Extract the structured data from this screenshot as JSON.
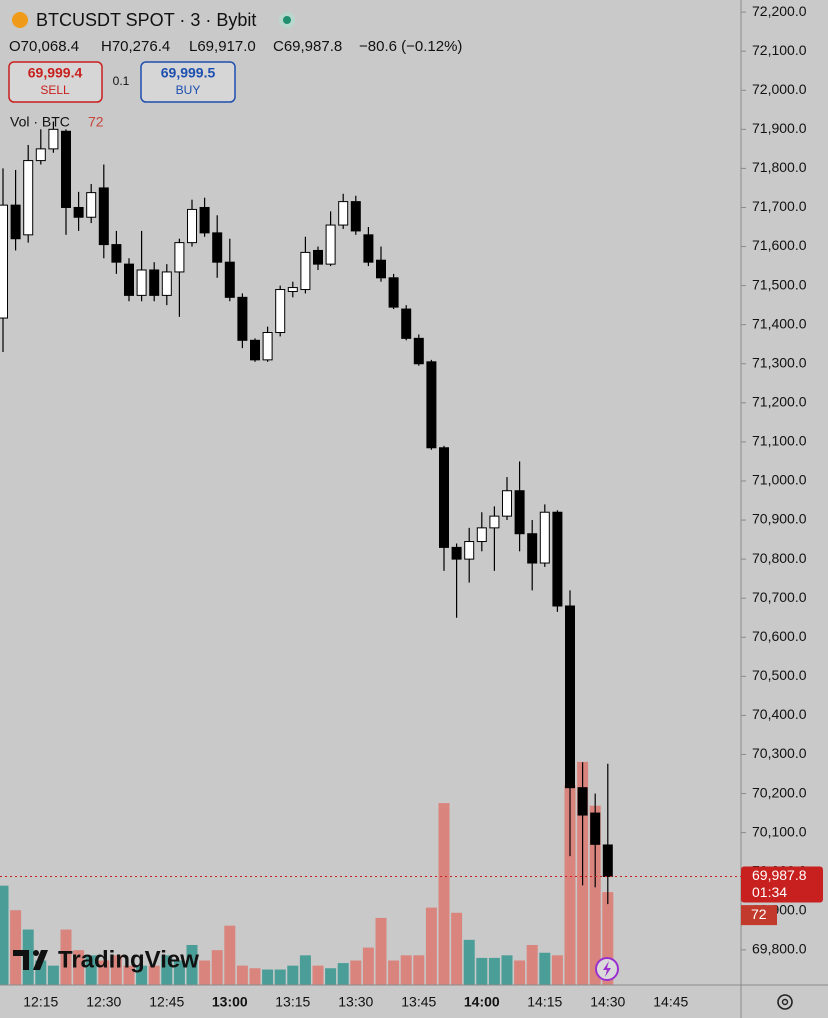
{
  "chart_data": {
    "type": "candlestick",
    "title": "BTCUSDT SPOT · 3 · Bybit",
    "ohlc_text": [
      "O70,068.4",
      "H70,276.4",
      "L69,917.0",
      "C69,987.8",
      "−80.6 (−0.12%)"
    ],
    "sell_price": "69,999.4",
    "sell_label": "SELL",
    "quantity": "0.1",
    "buy_price": "69,999.5",
    "buy_label": "BUY",
    "volume_legend": "Vol · BTC",
    "countdown": "01:34",
    "watermark": "TradingView",
    "last_price": {
      "value": 69987.8,
      "label": "69,987.8"
    },
    "categories": [
      null,
      null,
      null,
      "12:15",
      null,
      null,
      null,
      null,
      "12:30",
      null,
      null,
      null,
      null,
      "12:45",
      null,
      null,
      null,
      null,
      "13:00",
      null,
      null,
      null,
      null,
      "13:15",
      null,
      null,
      null,
      null,
      "13:30",
      null,
      null,
      null,
      null,
      "13:45",
      null,
      null,
      null,
      null,
      "14:00",
      null,
      null,
      null,
      null,
      "14:15",
      null,
      null,
      null,
      null,
      "14:30",
      null,
      null,
      null,
      null,
      "14:45",
      null,
      null,
      null,
      null,
      null
    ],
    "open": [
      71417,
      71706,
      71630,
      71820,
      71850,
      71895,
      71700,
      71675,
      71750,
      71605,
      71555,
      71475,
      71540,
      71475,
      71535,
      71610,
      71700,
      71635,
      71560,
      71470,
      71360,
      71310,
      71380,
      71485,
      71490,
      71590,
      71555,
      71655,
      71715,
      71630,
      71565,
      71520,
      71440,
      71365,
      71305,
      71085,
      70830,
      70800,
      70845,
      70880,
      70910,
      70975,
      70865,
      70790,
      70920,
      70680,
      70215,
      70150,
      70068.4,
      null,
      null,
      null,
      null,
      null,
      null,
      null,
      null,
      null,
      null
    ],
    "high": [
      71800,
      71796,
      71860,
      71900,
      71920,
      71900,
      71740,
      71760,
      71810,
      71640,
      71570,
      71640,
      71560,
      71555,
      71620,
      71720,
      71725,
      71680,
      71620,
      71480,
      71365,
      71395,
      71500,
      71510,
      71625,
      71600,
      71690,
      71735,
      71730,
      71650,
      71600,
      71530,
      71450,
      71375,
      71310,
      71090,
      70840,
      70880,
      70920,
      70935,
      71010,
      71050,
      70900,
      70940,
      70925,
      70720,
      70280,
      70200,
      70276.4,
      null,
      null,
      null,
      null,
      null,
      null,
      null,
      null,
      null,
      null
    ],
    "low": [
      71330,
      71590,
      71610,
      71810,
      71840,
      71630,
      71640,
      71660,
      71570,
      71530,
      71460,
      71460,
      71460,
      71450,
      71420,
      71600,
      71625,
      71520,
      71460,
      71340,
      71305,
      71305,
      71370,
      71470,
      71480,
      71540,
      71550,
      71645,
      71630,
      71550,
      71510,
      71440,
      71360,
      71295,
      71080,
      70770,
      70650,
      70740,
      70820,
      70770,
      70900,
      70820,
      70720,
      70780,
      70665,
      70040,
      69965,
      69960,
      69917,
      null,
      null,
      null,
      null,
      null,
      null,
      null,
      null,
      null,
      null
    ],
    "close": [
      71706,
      71620,
      71820,
      71850,
      71900,
      71700,
      71675,
      71738,
      71605,
      71560,
      71475,
      71540,
      71475,
      71535,
      71610,
      71695,
      71635,
      71560,
      71470,
      71360,
      71310,
      71380,
      71490,
      71495,
      71585,
      71555,
      71655,
      71715,
      71640,
      71560,
      71520,
      71445,
      71365,
      71300,
      71085,
      70830,
      70800,
      70845,
      70880,
      70910,
      70975,
      70865,
      70790,
      70920,
      70680,
      70215,
      70145,
      70070,
      69987.8,
      null,
      null,
      null,
      null,
      null,
      null,
      null,
      null,
      null,
      null
    ],
    "volume": [
      77,
      58,
      43,
      19,
      15,
      43,
      27,
      23,
      19,
      23,
      15,
      15,
      15,
      23,
      19,
      31,
      19,
      27,
      46,
      15,
      13,
      12,
      12,
      15,
      23,
      15,
      13,
      17,
      19,
      29,
      52,
      19,
      23,
      23,
      60,
      141,
      56,
      35,
      21,
      21,
      23,
      19,
      31,
      25,
      23,
      155,
      173,
      139,
      72,
      null,
      null,
      null,
      null,
      null,
      null,
      null,
      null,
      null,
      null
    ],
    "up_color": "#ffffff",
    "down_color": "#000000",
    "volume_up_color": "#4a9e97",
    "volume_down_color": "#d9857e",
    "last_price_color": "#c8201e",
    "ylim": [
      69710,
      72231
    ],
    "yticks": [
      {
        "value": 69800,
        "label": "69,800.0"
      },
      {
        "value": 69900,
        "label": "69,900.0"
      },
      {
        "value": 70000,
        "label": "70,000.0"
      },
      {
        "value": 70100,
        "label": "70,100.0"
      },
      {
        "value": 70200,
        "label": "70,200.0"
      },
      {
        "value": 70300,
        "label": "70,300.0"
      },
      {
        "value": 70400,
        "label": "70,400.0"
      },
      {
        "value": 70500,
        "label": "70,500.0"
      },
      {
        "value": 70600,
        "label": "70,600.0"
      },
      {
        "value": 70700,
        "label": "70,700.0"
      },
      {
        "value": 70800,
        "label": "70,800.0"
      },
      {
        "value": 70900,
        "label": "70,900.0"
      },
      {
        "value": 71000,
        "label": "71,000.0"
      },
      {
        "value": 71100,
        "label": "71,100.0"
      },
      {
        "value": 71200,
        "label": "71,200.0"
      },
      {
        "value": 71300,
        "label": "71,300.0"
      },
      {
        "value": 71400,
        "label": "71,400.0"
      },
      {
        "value": 71500,
        "label": "71,500.0"
      },
      {
        "value": 71600,
        "label": "71,600.0"
      },
      {
        "value": 71700,
        "label": "71,700.0"
      },
      {
        "value": 71800,
        "label": "71,800.0"
      },
      {
        "value": 71900,
        "label": "71,900.0"
      },
      {
        "value": 72000,
        "label": "72,000.0"
      },
      {
        "value": 72100,
        "label": "72,100.0"
      },
      {
        "value": 72200,
        "label": "72,200.0"
      }
    ]
  }
}
